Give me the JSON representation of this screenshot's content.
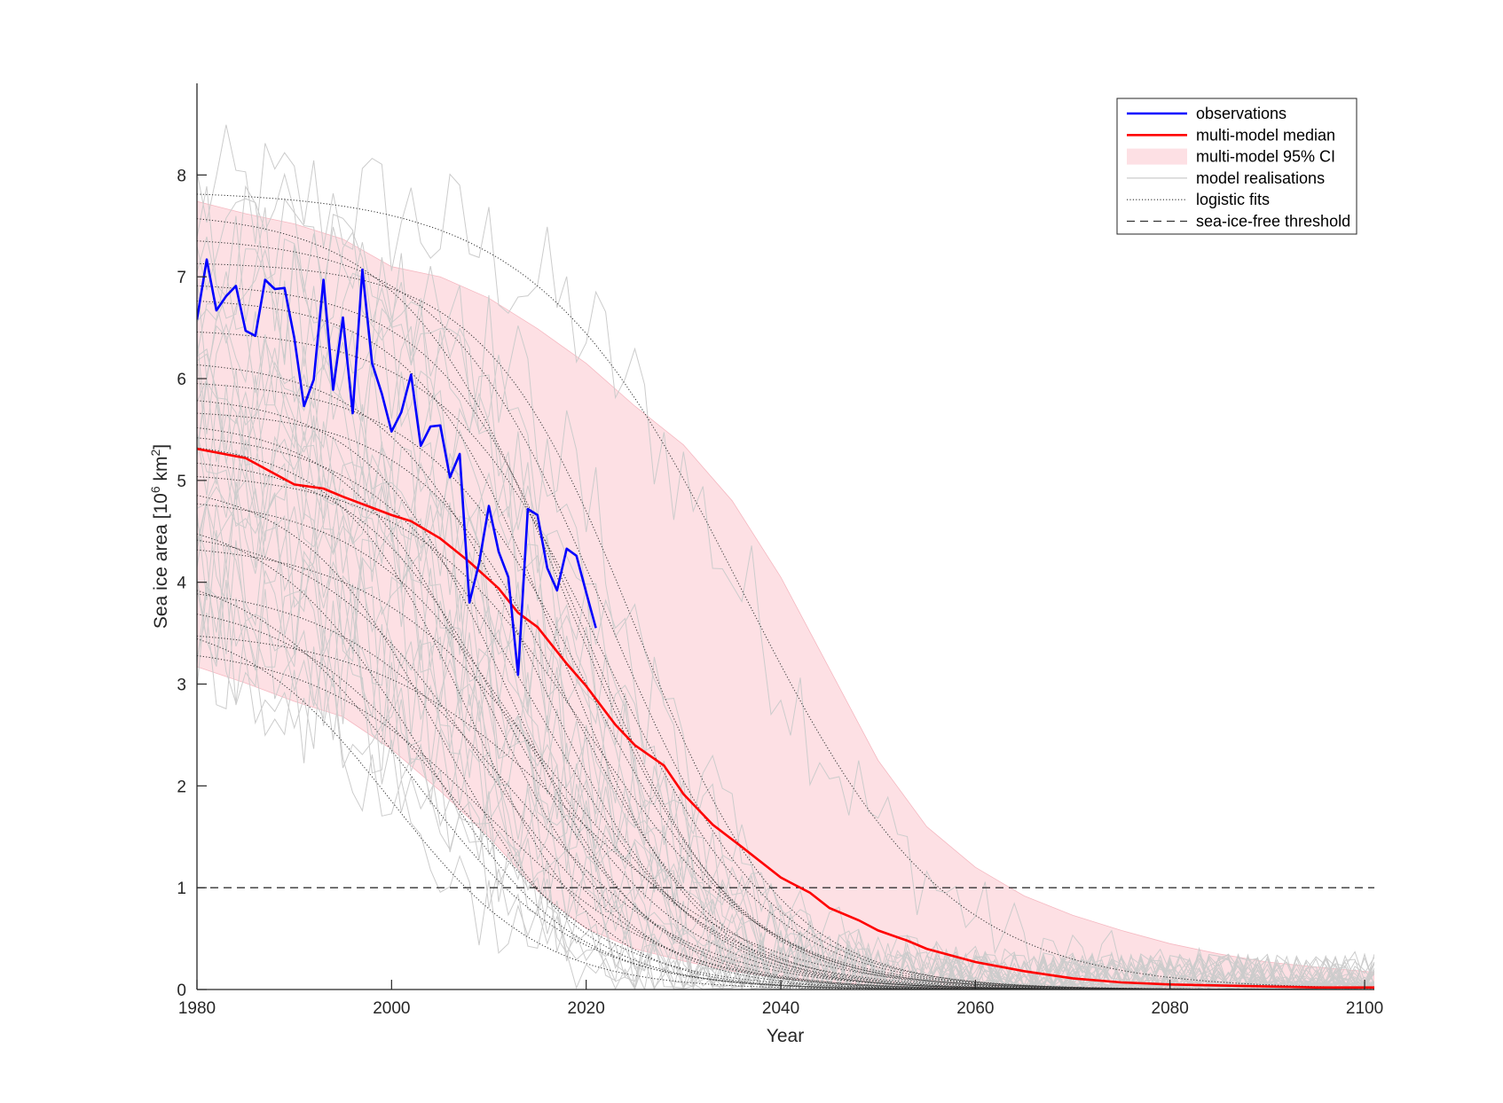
{
  "chart_data": {
    "type": "line",
    "xlabel": "Year",
    "ylabel": {
      "text": "Sea ice area [10",
      "sup1": "6",
      "mid": " km",
      "sup2": "2",
      "end": "]"
    },
    "xlim": [
      1980,
      2101
    ],
    "ylim": [
      0,
      8.9
    ],
    "xticks": [
      1980,
      2000,
      2020,
      2040,
      2060,
      2080,
      2100
    ],
    "yticks": [
      0,
      1,
      2,
      3,
      4,
      5,
      6,
      7,
      8
    ],
    "grid": false,
    "legend_position": "top-right",
    "legend": [
      {
        "label": "observations",
        "style": "solid-blue"
      },
      {
        "label": "multi-model median",
        "style": "solid-red"
      },
      {
        "label": "multi-model 95% CI",
        "style": "pink-fill"
      },
      {
        "label": "model realisations",
        "style": "solid-lightgray"
      },
      {
        "label": "logistic fits",
        "style": "dotted-black"
      },
      {
        "label": "sea-ice-free threshold",
        "style": "dashed-black"
      }
    ],
    "colors": {
      "observations": "#0000ff",
      "median": "#ff0000",
      "ci_fill": "#fde0e4",
      "ci_edge": "#f5b8c1",
      "realisations": "#cccccc",
      "fits": "#333333",
      "threshold": "#333333"
    },
    "threshold": 1.0,
    "observations": {
      "x": [
        1980,
        1981,
        1982,
        1983,
        1984,
        1985,
        1986,
        1987,
        1988,
        1989,
        1990,
        1991,
        1992,
        1993,
        1994,
        1995,
        1996,
        1997,
        1998,
        1999,
        2000,
        2001,
        2002,
        2003,
        2004,
        2005,
        2006,
        2007,
        2008,
        2009,
        2010,
        2011,
        2012,
        2013,
        2014,
        2015,
        2016,
        2017,
        2018,
        2019,
        2020,
        2021
      ],
      "y": [
        6.58,
        7.17,
        6.67,
        6.81,
        6.91,
        6.47,
        6.42,
        6.97,
        6.88,
        6.89,
        6.4,
        5.73,
        5.99,
        6.97,
        5.89,
        6.6,
        5.66,
        7.07,
        6.15,
        5.85,
        5.48,
        5.67,
        6.04,
        5.34,
        5.53,
        5.54,
        5.03,
        5.26,
        3.8,
        4.19,
        4.75,
        4.3,
        4.05,
        3.09,
        4.72,
        4.66,
        4.14,
        3.92,
        4.33,
        4.26,
        3.9,
        3.55
      ]
    },
    "median": {
      "x": [
        1980,
        1985,
        1990,
        1993,
        1995,
        2000,
        2002,
        2005,
        2008,
        2011,
        2013,
        2015,
        2018,
        2020,
        2023,
        2025,
        2028,
        2030,
        2033,
        2036,
        2040,
        2043,
        2045,
        2048,
        2050,
        2053,
        2055,
        2060,
        2065,
        2070,
        2075,
        2080,
        2085,
        2090,
        2095,
        2101
      ],
      "y": [
        5.31,
        5.22,
        4.96,
        4.92,
        4.84,
        4.66,
        4.6,
        4.43,
        4.2,
        3.94,
        3.7,
        3.56,
        3.2,
        2.98,
        2.6,
        2.4,
        2.2,
        1.92,
        1.62,
        1.4,
        1.1,
        0.95,
        0.8,
        0.68,
        0.58,
        0.48,
        0.4,
        0.27,
        0.18,
        0.11,
        0.07,
        0.05,
        0.04,
        0.03,
        0.02,
        0.02
      ]
    },
    "ci_upper": {
      "x": [
        1980,
        1985,
        1990,
        1995,
        2000,
        2005,
        2010,
        2015,
        2020,
        2025,
        2030,
        2035,
        2040,
        2045,
        2050,
        2055,
        2060,
        2065,
        2070,
        2075,
        2080,
        2085,
        2090,
        2095,
        2101
      ],
      "y": [
        7.74,
        7.62,
        7.52,
        7.37,
        7.1,
        7.0,
        6.79,
        6.49,
        6.15,
        5.73,
        5.35,
        4.8,
        4.05,
        3.15,
        2.25,
        1.6,
        1.2,
        0.92,
        0.73,
        0.58,
        0.45,
        0.35,
        0.27,
        0.22,
        0.17
      ]
    },
    "ci_lower": {
      "x": [
        1980,
        1985,
        1990,
        1995,
        2000,
        2005,
        2010,
        2015,
        2020,
        2025,
        2030,
        2035,
        2040,
        2045,
        2050,
        2055,
        2060,
        2065,
        2070,
        2075,
        2080,
        2085,
        2090,
        2095,
        2101
      ],
      "y": [
        3.17,
        3.01,
        2.83,
        2.68,
        2.36,
        1.95,
        1.5,
        0.97,
        0.6,
        0.4,
        0.28,
        0.18,
        0.11,
        0.07,
        0.04,
        0.02,
        0.01,
        0.005,
        0.0,
        0.0,
        0.0,
        0.0,
        0.0,
        0.0,
        0.0
      ]
    },
    "logistic_fits": [
      {
        "L": 7.85,
        "x0": 2036,
        "k": 0.095
      },
      {
        "L": 7.65,
        "x0": 2018,
        "k": 0.12
      },
      {
        "L": 7.4,
        "x0": 2022,
        "k": 0.12
      },
      {
        "L": 7.15,
        "x0": 2025,
        "k": 0.13
      },
      {
        "L": 6.95,
        "x0": 2020,
        "k": 0.13
      },
      {
        "L": 6.8,
        "x0": 2017,
        "k": 0.14
      },
      {
        "L": 6.5,
        "x0": 2022,
        "k": 0.12
      },
      {
        "L": 6.2,
        "x0": 2015,
        "k": 0.13
      },
      {
        "L": 6.0,
        "x0": 2020,
        "k": 0.12
      },
      {
        "L": 5.85,
        "x0": 2012,
        "k": 0.14
      },
      {
        "L": 5.7,
        "x0": 2018,
        "k": 0.13
      },
      {
        "L": 5.6,
        "x0": 2010,
        "k": 0.14
      },
      {
        "L": 5.5,
        "x0": 2015,
        "k": 0.12
      },
      {
        "L": 5.4,
        "x0": 2008,
        "k": 0.15
      },
      {
        "L": 5.25,
        "x0": 2012,
        "k": 0.13
      },
      {
        "L": 5.1,
        "x0": 2020,
        "k": 0.11
      },
      {
        "L": 5.0,
        "x0": 2005,
        "k": 0.14
      },
      {
        "L": 4.85,
        "x0": 2014,
        "k": 0.12
      },
      {
        "L": 4.7,
        "x0": 2003,
        "k": 0.13
      },
      {
        "L": 4.55,
        "x0": 2009,
        "k": 0.12
      },
      {
        "L": 4.4,
        "x0": 2016,
        "k": 0.11
      },
      {
        "L": 4.2,
        "x0": 2002,
        "k": 0.12
      },
      {
        "L": 4.0,
        "x0": 2012,
        "k": 0.11
      },
      {
        "L": 3.85,
        "x0": 2006,
        "k": 0.12
      },
      {
        "L": 3.7,
        "x0": 2000,
        "k": 0.13
      },
      {
        "L": 3.55,
        "x0": 2018,
        "k": 0.1
      },
      {
        "L": 3.4,
        "x0": 2010,
        "k": 0.11
      }
    ]
  }
}
